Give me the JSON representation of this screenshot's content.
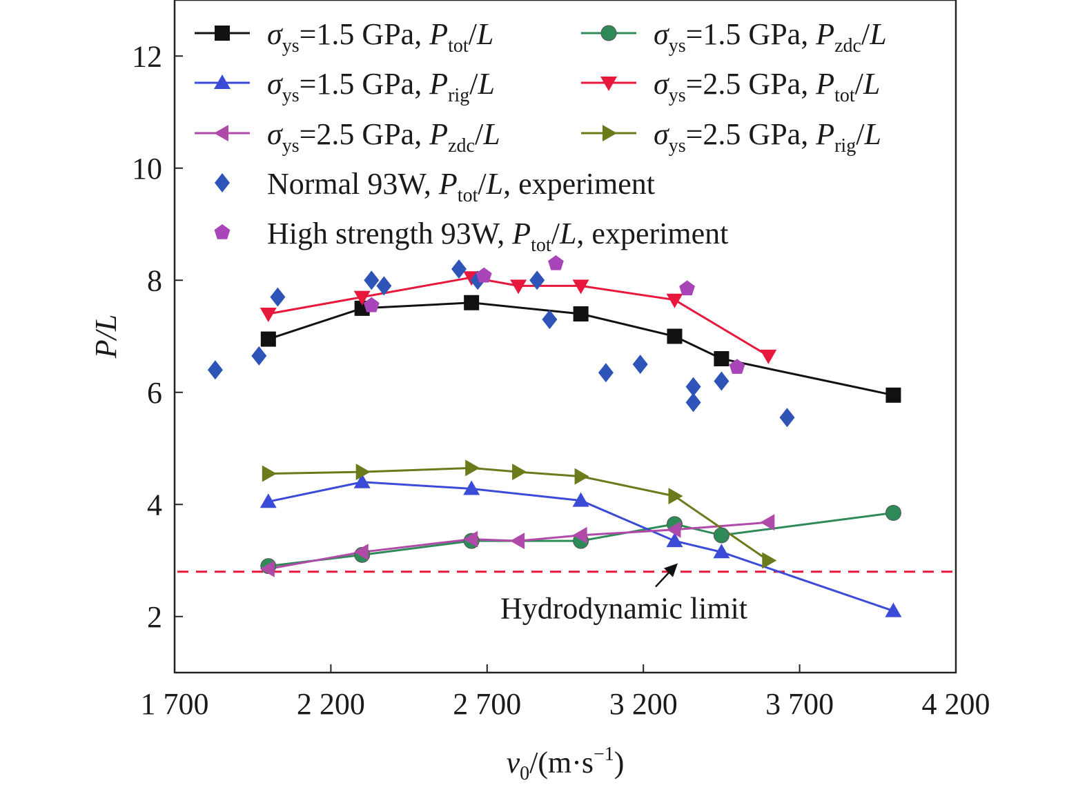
{
  "chart_data": {
    "type": "scatter",
    "xlim": [
      1700,
      4200
    ],
    "ylim": [
      1.0,
      13.0
    ],
    "xticks": [
      1700,
      2200,
      2700,
      3200,
      3700,
      4200
    ],
    "yticks": [
      2,
      4,
      6,
      8,
      10,
      12
    ],
    "xtick_labels": [
      "1 700",
      "2 200",
      "2 700",
      "3 200",
      "3 700",
      "4 200"
    ],
    "ytick_labels": [
      "2",
      "4",
      "6",
      "8",
      "10",
      "12"
    ],
    "xlabel": {
      "main": "v",
      "sub": "0",
      "rest": "/(m·s",
      "sup": "−1",
      "close": ")"
    },
    "ylabel": "P/L",
    "grid": false,
    "legend_position": "top",
    "series": [
      {
        "name": "σys=1.5 GPa, Ptot/L",
        "label_parts": [
          "σ",
          "ys",
          "=1.5 GPa, ",
          "P",
          "tot",
          "/L"
        ],
        "marker": "square",
        "color": "#111111",
        "line": true,
        "x": [
          2000,
          2300,
          2650,
          3000,
          3300,
          3450,
          4000
        ],
        "y": [
          6.95,
          7.5,
          7.6,
          7.4,
          7.0,
          6.6,
          5.95
        ]
      },
      {
        "name": "σys=1.5 GPa, Pzdc/L",
        "label_parts": [
          "σ",
          "ys",
          "=1.5 GPa, ",
          "P",
          "zdc",
          "/L"
        ],
        "marker": "circle",
        "color": "#2e8b57",
        "line": true,
        "x": [
          2000,
          2300,
          2650,
          3000,
          3300,
          3450,
          4000
        ],
        "y": [
          2.9,
          3.1,
          3.35,
          3.35,
          3.65,
          3.45,
          3.85
        ]
      },
      {
        "name": "σys=1.5 GPa, Prig/L",
        "label_parts": [
          "σ",
          "ys",
          "=1.5 GPa, ",
          "P",
          "rig",
          "/L"
        ],
        "marker": "triangle-up",
        "color": "#3b4bd8",
        "line": true,
        "x": [
          2000,
          2300,
          2650,
          3000,
          3300,
          3450,
          4000
        ],
        "y": [
          4.05,
          4.4,
          4.28,
          4.07,
          3.35,
          3.15,
          2.1
        ]
      },
      {
        "name": "σys=2.5 GPa, Ptot/L",
        "label_parts": [
          "σ",
          "ys",
          "=2.5 GPa, ",
          "P",
          "tot",
          "/L"
        ],
        "marker": "triangle-down",
        "color": "#e8183c",
        "line": true,
        "x": [
          2000,
          2300,
          2650,
          2800,
          3000,
          3300,
          3600
        ],
        "y": [
          7.4,
          7.7,
          8.05,
          7.9,
          7.9,
          7.65,
          6.65
        ]
      },
      {
        "name": "σys=2.5 GPa, Pzdc/L",
        "label_parts": [
          "σ",
          "ys",
          "=2.5 GPa, ",
          "P",
          "zdc",
          "/L"
        ],
        "marker": "triangle-left",
        "color": "#b04aa8",
        "line": true,
        "x": [
          2000,
          2300,
          2650,
          2800,
          3000,
          3300,
          3600
        ],
        "y": [
          2.85,
          3.15,
          3.38,
          3.35,
          3.45,
          3.55,
          3.68
        ]
      },
      {
        "name": "σys=2.5 GPa, Prig/L",
        "label_parts": [
          "σ",
          "ys",
          "=2.5 GPa, ",
          "P",
          "rig",
          "/L"
        ],
        "marker": "triangle-right",
        "color": "#6b7a1a",
        "line": true,
        "x": [
          2000,
          2300,
          2650,
          2800,
          3000,
          3300,
          3600
        ],
        "y": [
          4.55,
          4.58,
          4.65,
          4.58,
          4.5,
          4.15,
          3.0
        ]
      },
      {
        "name": "Normal 93W, Ptot/L, experiment",
        "label_parts": [
          "Normal 93W, ",
          "P",
          "tot",
          "/L",
          ", experiment"
        ],
        "marker": "diamond",
        "color": "#2f54b8",
        "line": false,
        "x": [
          1830,
          1970,
          2030,
          2330,
          2370,
          2610,
          2670,
          2860,
          2900,
          3080,
          3190,
          3360,
          3360,
          3450,
          3660
        ],
        "y": [
          6.4,
          6.65,
          7.7,
          8.0,
          7.9,
          8.2,
          8.0,
          8.0,
          7.3,
          6.35,
          6.5,
          6.1,
          5.82,
          6.2,
          5.55
        ]
      },
      {
        "name": "High strength 93W, Ptot/L, experiment",
        "label_parts": [
          "High strength 93W, ",
          "P",
          "tot",
          "/L",
          ", experiment"
        ],
        "marker": "pentagon",
        "color": "#a845b8",
        "line": false,
        "x": [
          2330,
          2690,
          2920,
          3340,
          3500
        ],
        "y": [
          7.55,
          8.08,
          8.3,
          7.85,
          6.45
        ]
      }
    ],
    "reference_line": {
      "y": 2.8,
      "color": "#e8183c",
      "style": "dashed"
    },
    "annotation": {
      "text": "Hydrodynamic limit",
      "arrow_to": [
        3310,
        2.95
      ]
    }
  }
}
